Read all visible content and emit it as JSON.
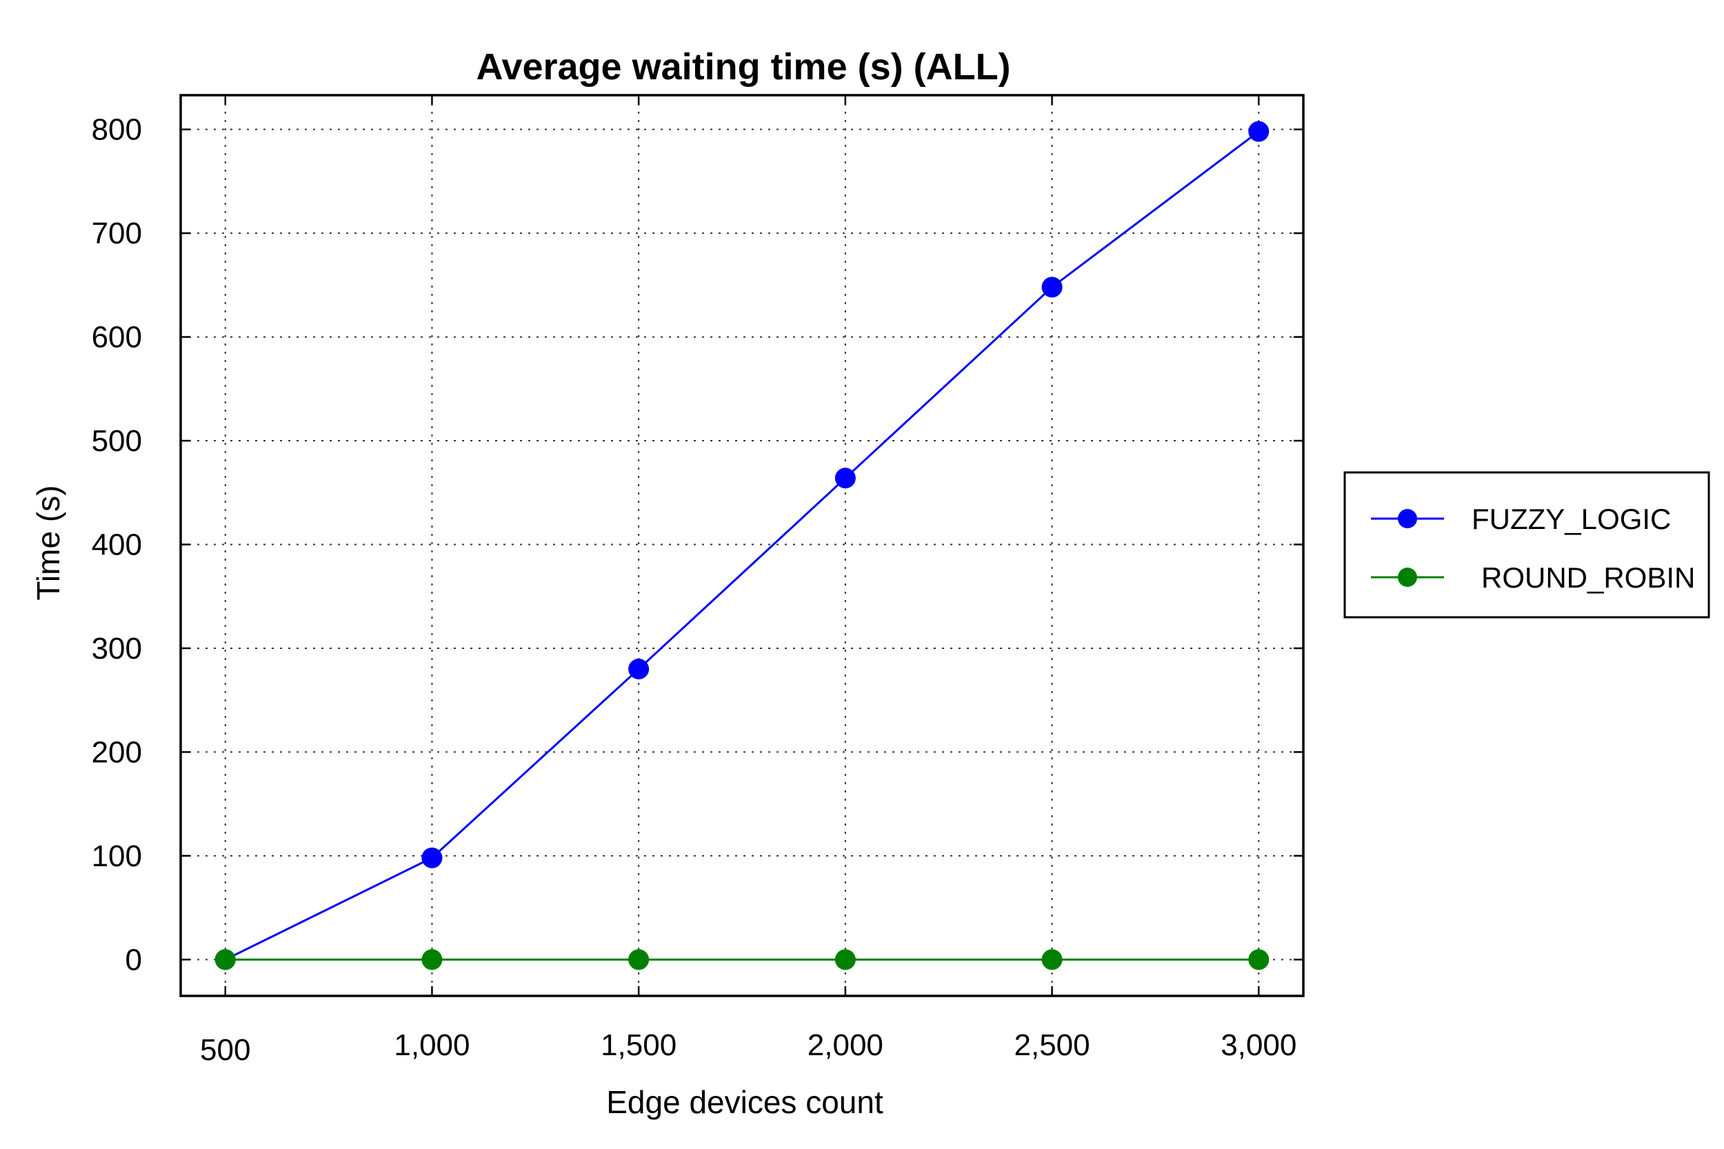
{
  "chart_data": {
    "type": "line",
    "title": "Average waiting time (s) (ALL)",
    "xlabel": "Edge devices count",
    "ylabel": "Time (s)",
    "x": [
      500,
      1000,
      1500,
      2000,
      2500,
      3000
    ],
    "x_tick_labels": [
      "500",
      "1,000",
      "1,500",
      "2,000",
      "2,500",
      "3,000"
    ],
    "y_ticks": [
      0,
      100,
      200,
      300,
      400,
      500,
      600,
      700,
      800
    ],
    "y_tick_labels": [
      "0",
      "100",
      "200",
      "300",
      "400",
      "500",
      "600",
      "700",
      "800"
    ],
    "ylim": [
      -35,
      833
    ],
    "xlim": [
      392,
      3108
    ],
    "grid": true,
    "legend_position": "outside-right",
    "series": [
      {
        "name": "FUZZY_LOGIC",
        "color": "#0000ff",
        "marker": "circle",
        "values": [
          0,
          98,
          280,
          464,
          648,
          798
        ]
      },
      {
        "name": "ROUND_ROBIN",
        "color": "#008000",
        "marker": "circle",
        "values": [
          0,
          0,
          0,
          0,
          0,
          0
        ]
      }
    ]
  }
}
